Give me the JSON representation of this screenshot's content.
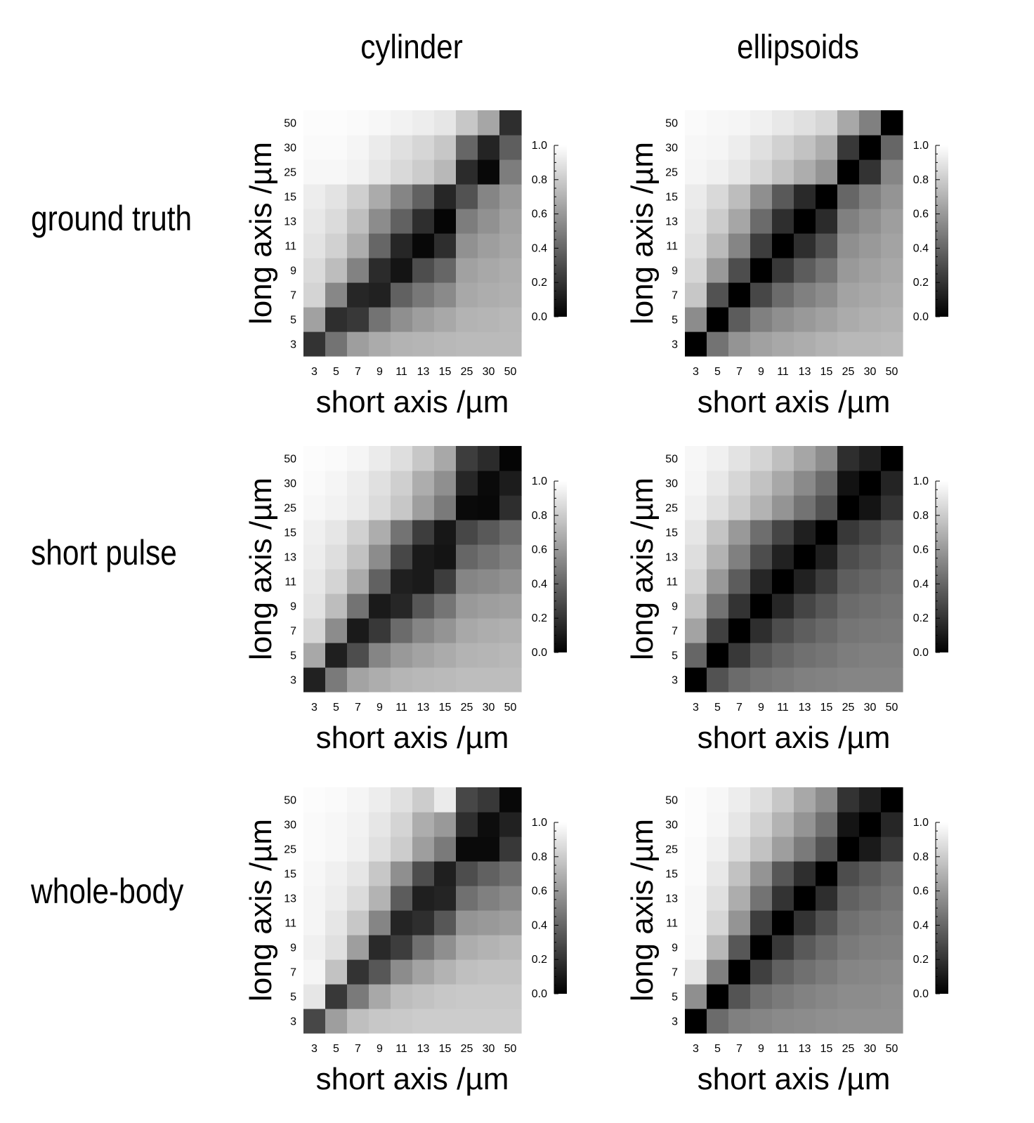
{
  "columns": [
    "cylinder",
    "ellipsoids"
  ],
  "rows": [
    "ground truth",
    "short pulse",
    "whole-body"
  ],
  "chart_data": [
    {
      "type": "heatmap",
      "model": "cylinder",
      "condition": "ground truth",
      "xlabel": "short axis /µm",
      "ylabel": "long axis /µm",
      "x_ticks": [
        "3",
        "5",
        "7",
        "9",
        "11",
        "13",
        "15",
        "25",
        "30",
        "50"
      ],
      "y_ticks": [
        "3",
        "5",
        "7",
        "9",
        "11",
        "13",
        "15",
        "25",
        "30",
        "50"
      ],
      "colorbar": {
        "range": [
          0,
          1
        ],
        "ticks": [
          "0.0",
          "0.2",
          "0.4",
          "0.6",
          "0.8",
          "1.0"
        ],
        "colormap": "gray"
      },
      "values": [
        [
          0.2,
          0.45,
          0.62,
          0.67,
          0.7,
          0.71,
          0.72,
          0.73,
          0.73,
          0.73
        ],
        [
          0.63,
          0.18,
          0.22,
          0.45,
          0.56,
          0.62,
          0.66,
          0.7,
          0.71,
          0.72
        ],
        [
          0.83,
          0.53,
          0.15,
          0.13,
          0.38,
          0.47,
          0.54,
          0.66,
          0.68,
          0.69
        ],
        [
          0.86,
          0.74,
          0.51,
          0.17,
          0.08,
          0.3,
          0.4,
          0.63,
          0.66,
          0.68
        ],
        [
          0.89,
          0.82,
          0.68,
          0.4,
          0.15,
          0.03,
          0.18,
          0.57,
          0.62,
          0.65
        ],
        [
          0.91,
          0.86,
          0.75,
          0.55,
          0.38,
          0.18,
          0.02,
          0.49,
          0.57,
          0.63
        ],
        [
          0.93,
          0.89,
          0.81,
          0.67,
          0.52,
          0.38,
          0.15,
          0.32,
          0.52,
          0.6
        ],
        [
          0.97,
          0.97,
          0.95,
          0.9,
          0.85,
          0.8,
          0.72,
          0.17,
          0.03,
          0.49
        ],
        [
          0.98,
          0.98,
          0.96,
          0.92,
          0.88,
          0.84,
          0.78,
          0.4,
          0.14,
          0.37
        ],
        [
          0.99,
          0.99,
          0.98,
          0.97,
          0.95,
          0.93,
          0.9,
          0.78,
          0.65,
          0.18
        ]
      ]
    },
    {
      "type": "heatmap",
      "model": "ellipsoids",
      "condition": "ground truth",
      "xlabel": "short axis /µm",
      "ylabel": "long axis /µm",
      "x_ticks": [
        "3",
        "5",
        "7",
        "9",
        "11",
        "13",
        "15",
        "25",
        "30",
        "50"
      ],
      "y_ticks": [
        "3",
        "5",
        "7",
        "9",
        "11",
        "13",
        "15",
        "25",
        "30",
        "50"
      ],
      "colorbar": {
        "range": [
          0,
          1
        ],
        "ticks": [
          "0.0",
          "0.2",
          "0.4",
          "0.6",
          "0.8",
          "1.0"
        ],
        "colormap": "gray"
      },
      "values": [
        [
          0.0,
          0.45,
          0.58,
          0.63,
          0.66,
          0.68,
          0.7,
          0.72,
          0.72,
          0.73
        ],
        [
          0.55,
          0.0,
          0.36,
          0.5,
          0.56,
          0.6,
          0.63,
          0.67,
          0.69,
          0.7
        ],
        [
          0.78,
          0.32,
          0.0,
          0.28,
          0.42,
          0.5,
          0.55,
          0.64,
          0.66,
          0.68
        ],
        [
          0.84,
          0.6,
          0.3,
          0.0,
          0.22,
          0.36,
          0.45,
          0.6,
          0.63,
          0.66
        ],
        [
          0.88,
          0.73,
          0.52,
          0.24,
          0.0,
          0.18,
          0.32,
          0.56,
          0.6,
          0.64
        ],
        [
          0.9,
          0.8,
          0.65,
          0.42,
          0.18,
          0.0,
          0.17,
          0.5,
          0.56,
          0.62
        ],
        [
          0.92,
          0.85,
          0.74,
          0.56,
          0.35,
          0.16,
          0.0,
          0.4,
          0.5,
          0.58
        ],
        [
          0.96,
          0.94,
          0.9,
          0.84,
          0.76,
          0.68,
          0.58,
          0.0,
          0.2,
          0.52
        ],
        [
          0.97,
          0.96,
          0.93,
          0.88,
          0.82,
          0.76,
          0.68,
          0.22,
          0.0,
          0.4
        ],
        [
          0.98,
          0.97,
          0.96,
          0.94,
          0.91,
          0.88,
          0.84,
          0.66,
          0.5,
          0.0
        ]
      ]
    },
    {
      "type": "heatmap",
      "model": "cylinder",
      "condition": "short pulse",
      "xlabel": "short axis /µm",
      "ylabel": "long axis /µm",
      "x_ticks": [
        "3",
        "5",
        "7",
        "9",
        "11",
        "13",
        "15",
        "25",
        "30",
        "50"
      ],
      "y_ticks": [
        "3",
        "5",
        "7",
        "9",
        "11",
        "13",
        "15",
        "25",
        "30",
        "50"
      ],
      "colorbar": {
        "range": [
          0,
          1
        ],
        "ticks": [
          "0.0",
          "0.2",
          "0.4",
          "0.6",
          "0.8",
          "1.0"
        ],
        "colormap": "gray"
      },
      "values": [
        [
          0.13,
          0.48,
          0.64,
          0.68,
          0.71,
          0.72,
          0.73,
          0.74,
          0.74,
          0.74
        ],
        [
          0.66,
          0.12,
          0.3,
          0.52,
          0.6,
          0.64,
          0.67,
          0.7,
          0.71,
          0.72
        ],
        [
          0.84,
          0.55,
          0.1,
          0.22,
          0.42,
          0.52,
          0.58,
          0.66,
          0.68,
          0.69
        ],
        [
          0.89,
          0.74,
          0.45,
          0.1,
          0.15,
          0.34,
          0.46,
          0.6,
          0.62,
          0.63
        ],
        [
          0.91,
          0.83,
          0.67,
          0.38,
          0.12,
          0.1,
          0.24,
          0.52,
          0.54,
          0.57
        ],
        [
          0.93,
          0.87,
          0.76,
          0.55,
          0.28,
          0.1,
          0.08,
          0.4,
          0.45,
          0.5
        ],
        [
          0.94,
          0.9,
          0.82,
          0.68,
          0.45,
          0.24,
          0.09,
          0.28,
          0.35,
          0.42
        ],
        [
          0.97,
          0.95,
          0.92,
          0.86,
          0.78,
          0.62,
          0.48,
          0.04,
          0.03,
          0.18
        ],
        [
          0.98,
          0.96,
          0.93,
          0.88,
          0.81,
          0.68,
          0.56,
          0.15,
          0.04,
          0.11
        ],
        [
          0.99,
          0.98,
          0.96,
          0.92,
          0.87,
          0.78,
          0.66,
          0.24,
          0.17,
          0.02
        ]
      ]
    },
    {
      "type": "heatmap",
      "model": "ellipsoids",
      "condition": "short pulse",
      "xlabel": "short axis /µm",
      "ylabel": "long axis /µm",
      "x_ticks": [
        "3",
        "5",
        "7",
        "9",
        "11",
        "13",
        "15",
        "25",
        "30",
        "50"
      ],
      "y_ticks": [
        "3",
        "5",
        "7",
        "9",
        "11",
        "13",
        "15",
        "25",
        "30",
        "50"
      ],
      "colorbar": {
        "range": [
          0,
          1
        ],
        "ticks": [
          "0.0",
          "0.2",
          "0.4",
          "0.6",
          "0.8",
          "1.0"
        ],
        "colormap": "gray"
      },
      "values": [
        [
          0.0,
          0.32,
          0.42,
          0.46,
          0.48,
          0.5,
          0.51,
          0.52,
          0.52,
          0.52
        ],
        [
          0.4,
          0.0,
          0.22,
          0.34,
          0.4,
          0.44,
          0.46,
          0.49,
          0.5,
          0.5
        ],
        [
          0.64,
          0.25,
          0.0,
          0.18,
          0.3,
          0.37,
          0.41,
          0.46,
          0.47,
          0.48
        ],
        [
          0.76,
          0.45,
          0.2,
          0.0,
          0.15,
          0.27,
          0.34,
          0.42,
          0.44,
          0.46
        ],
        [
          0.83,
          0.6,
          0.36,
          0.15,
          0.0,
          0.13,
          0.24,
          0.37,
          0.4,
          0.43
        ],
        [
          0.87,
          0.7,
          0.5,
          0.3,
          0.13,
          0.0,
          0.12,
          0.3,
          0.35,
          0.4
        ],
        [
          0.9,
          0.77,
          0.6,
          0.43,
          0.27,
          0.12,
          0.0,
          0.22,
          0.28,
          0.35
        ],
        [
          0.94,
          0.88,
          0.8,
          0.7,
          0.58,
          0.45,
          0.32,
          0.0,
          0.08,
          0.2
        ],
        [
          0.96,
          0.91,
          0.84,
          0.76,
          0.66,
          0.54,
          0.42,
          0.07,
          0.0,
          0.14
        ],
        [
          0.97,
          0.94,
          0.89,
          0.83,
          0.75,
          0.65,
          0.55,
          0.18,
          0.12,
          0.0
        ]
      ]
    },
    {
      "type": "heatmap",
      "model": "cylinder",
      "condition": "whole-body",
      "xlabel": "short axis /µm",
      "ylabel": "long axis /µm",
      "x_ticks": [
        "3",
        "5",
        "7",
        "9",
        "11",
        "13",
        "15",
        "25",
        "30",
        "50"
      ],
      "y_ticks": [
        "3",
        "5",
        "7",
        "9",
        "11",
        "13",
        "15",
        "25",
        "30",
        "50"
      ],
      "colorbar": {
        "range": [
          0,
          1
        ],
        "ticks": [
          "0.0",
          "0.2",
          "0.4",
          "0.6",
          "0.8",
          "1.0"
        ],
        "colormap": "gray"
      },
      "values": [
        [
          0.28,
          0.62,
          0.75,
          0.78,
          0.79,
          0.8,
          0.8,
          0.8,
          0.8,
          0.8
        ],
        [
          0.9,
          0.22,
          0.48,
          0.66,
          0.74,
          0.76,
          0.78,
          0.79,
          0.79,
          0.79
        ],
        [
          0.96,
          0.76,
          0.2,
          0.34,
          0.55,
          0.64,
          0.7,
          0.75,
          0.76,
          0.76
        ],
        [
          0.94,
          0.88,
          0.62,
          0.16,
          0.24,
          0.44,
          0.56,
          0.68,
          0.7,
          0.72
        ],
        [
          0.96,
          0.9,
          0.78,
          0.52,
          0.14,
          0.18,
          0.34,
          0.58,
          0.6,
          0.62
        ],
        [
          0.96,
          0.93,
          0.86,
          0.7,
          0.36,
          0.12,
          0.14,
          0.44,
          0.5,
          0.54
        ],
        [
          0.97,
          0.94,
          0.9,
          0.78,
          0.56,
          0.3,
          0.12,
          0.3,
          0.38,
          0.44
        ],
        [
          0.98,
          0.97,
          0.94,
          0.88,
          0.8,
          0.62,
          0.48,
          0.04,
          0.04,
          0.22
        ],
        [
          0.98,
          0.97,
          0.95,
          0.9,
          0.83,
          0.68,
          0.6,
          0.18,
          0.05,
          0.13
        ],
        [
          0.99,
          0.98,
          0.96,
          0.93,
          0.88,
          0.8,
          0.92,
          0.28,
          0.22,
          0.03
        ]
      ]
    },
    {
      "type": "heatmap",
      "model": "ellipsoids",
      "condition": "whole-body",
      "xlabel": "short axis /µm",
      "ylabel": "long axis /µm",
      "x_ticks": [
        "3",
        "5",
        "7",
        "9",
        "11",
        "13",
        "15",
        "25",
        "30",
        "50"
      ],
      "y_ticks": [
        "3",
        "5",
        "7",
        "9",
        "11",
        "13",
        "15",
        "25",
        "30",
        "50"
      ],
      "colorbar": {
        "range": [
          0,
          1
        ],
        "ticks": [
          "0.0",
          "0.2",
          "0.4",
          "0.6",
          "0.8",
          "1.0"
        ],
        "colormap": "gray"
      },
      "values": [
        [
          0.0,
          0.42,
          0.5,
          0.52,
          0.54,
          0.55,
          0.56,
          0.57,
          0.57,
          0.57
        ],
        [
          0.56,
          0.0,
          0.33,
          0.44,
          0.48,
          0.51,
          0.53,
          0.55,
          0.55,
          0.56
        ],
        [
          0.9,
          0.5,
          0.0,
          0.25,
          0.38,
          0.44,
          0.48,
          0.52,
          0.53,
          0.54
        ],
        [
          0.96,
          0.72,
          0.34,
          0.0,
          0.22,
          0.35,
          0.42,
          0.48,
          0.5,
          0.51
        ],
        [
          0.97,
          0.84,
          0.58,
          0.24,
          0.0,
          0.2,
          0.32,
          0.44,
          0.47,
          0.49
        ],
        [
          0.97,
          0.88,
          0.68,
          0.45,
          0.2,
          0.0,
          0.18,
          0.38,
          0.42,
          0.46
        ],
        [
          0.98,
          0.91,
          0.76,
          0.58,
          0.34,
          0.18,
          0.0,
          0.3,
          0.36,
          0.42
        ],
        [
          0.98,
          0.94,
          0.86,
          0.76,
          0.62,
          0.48,
          0.32,
          0.0,
          0.1,
          0.22
        ],
        [
          0.99,
          0.96,
          0.9,
          0.82,
          0.7,
          0.58,
          0.44,
          0.08,
          0.0,
          0.15
        ],
        [
          0.99,
          0.97,
          0.93,
          0.87,
          0.78,
          0.66,
          0.55,
          0.2,
          0.12,
          0.0
        ]
      ]
    }
  ]
}
